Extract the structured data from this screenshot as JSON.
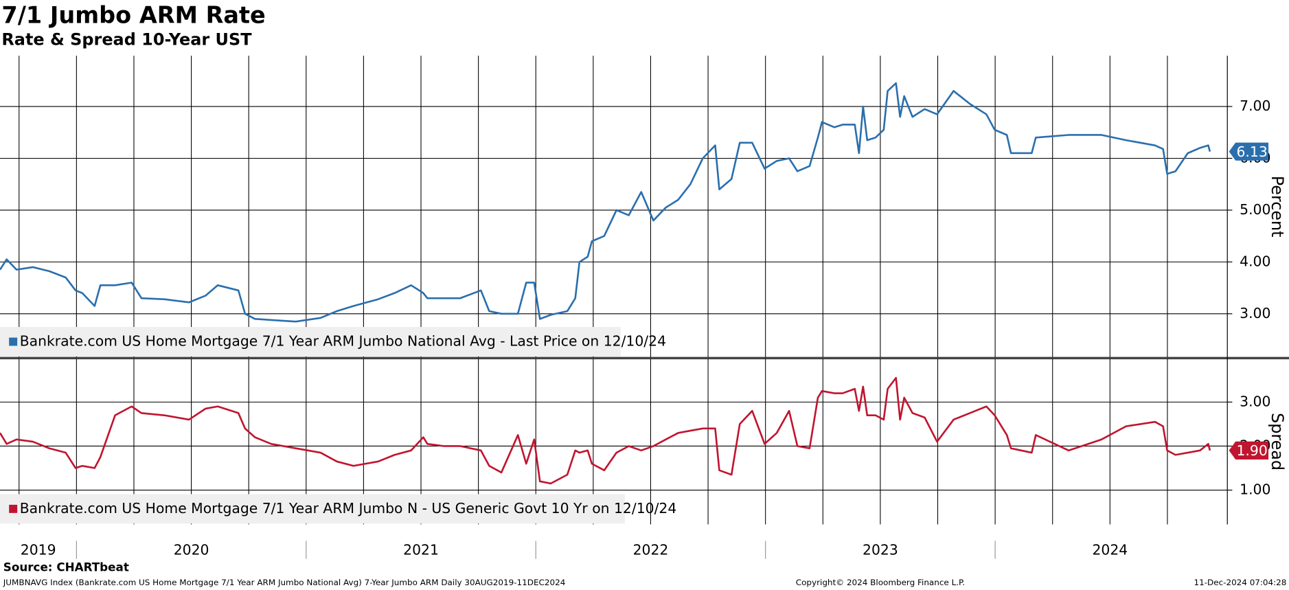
{
  "header": {
    "title": "7/1 Jumbo ARM Rate",
    "subtitle": "Rate & Spread 10-Year UST"
  },
  "footer": {
    "source": "Source: CHARTbeat",
    "description": "JUMBNAVG Index (Bankrate.com US Home Mortgage 7/1 Year ARM Jumbo National Avg) 7-Year Jumbo ARM  Daily 30AUG2019-11DEC2024",
    "copyright": "Copyright© 2024 Bloomberg Finance L.P.",
    "timestamp": "11-Dec-2024 07:04:28"
  },
  "chart_data": [
    {
      "type": "line",
      "y_label": "Percent",
      "x": [
        2019.667,
        2019.696,
        2019.739,
        2019.81,
        2019.882,
        2019.953,
        2019.996,
        2020.025,
        2020.079,
        2020.104,
        2020.168,
        2020.24,
        2020.283,
        2020.383,
        2020.49,
        2020.562,
        2020.615,
        2020.705,
        2020.734,
        2020.777,
        2020.848,
        2020.955,
        2021.063,
        2021.134,
        2021.206,
        2021.313,
        2021.385,
        2021.457,
        2021.51,
        2021.528,
        2021.6,
        2021.671,
        2021.761,
        2021.797,
        2021.85,
        2021.922,
        2021.958,
        2021.993,
        2022.018,
        2022.065,
        2022.137,
        2022.172,
        2022.19,
        2022.226,
        2022.244,
        2022.298,
        2022.351,
        2022.405,
        2022.459,
        2022.512,
        2022.566,
        2022.62,
        2022.673,
        2022.727,
        2022.781,
        2022.799,
        2022.852,
        2022.888,
        2022.942,
        2022.996,
        2023.049,
        2023.103,
        2023.139,
        2023.192,
        2023.228,
        2023.246,
        2023.3,
        2023.336,
        2023.389,
        2023.407,
        2023.425,
        2023.443,
        2023.479,
        2023.515,
        2023.532,
        2023.568,
        2023.586,
        2023.604,
        2023.64,
        2023.693,
        2023.747,
        2023.819,
        2023.89,
        2023.962,
        2023.998,
        2024.051,
        2024.069,
        2024.159,
        2024.177,
        2024.32,
        2024.463,
        2024.57,
        2024.696,
        2024.731,
        2024.749,
        2024.785,
        2024.839,
        2024.892,
        2024.928,
        2024.935
      ],
      "series": [
        {
          "name": "Bankrate.com US Home Mortgage 7/1 Year ARM Jumbo National Avg - Last Price on 12/10/24",
          "color": "#2a6fad",
          "values": [
            3.85,
            4.05,
            3.85,
            3.9,
            3.82,
            3.7,
            3.45,
            3.4,
            3.15,
            3.55,
            3.55,
            3.6,
            3.3,
            3.28,
            3.22,
            3.35,
            3.55,
            3.45,
            3.0,
            2.9,
            2.88,
            2.85,
            2.92,
            3.05,
            3.15,
            3.28,
            3.4,
            3.55,
            3.4,
            3.3,
            3.3,
            3.3,
            3.45,
            3.05,
            3.0,
            3.0,
            3.6,
            3.6,
            2.9,
            2.98,
            3.05,
            3.3,
            4.0,
            4.1,
            4.4,
            4.5,
            5.0,
            4.9,
            5.35,
            4.8,
            5.05,
            5.2,
            5.5,
            6.0,
            6.25,
            5.4,
            5.6,
            6.3,
            6.3,
            5.8,
            5.95,
            6.0,
            5.75,
            5.85,
            6.4,
            6.7,
            6.6,
            6.65,
            6.65,
            6.1,
            7.0,
            6.35,
            6.4,
            6.55,
            7.3,
            7.45,
            6.8,
            7.2,
            6.8,
            6.95,
            6.85,
            7.3,
            7.05,
            6.85,
            6.55,
            6.45,
            6.1,
            6.1,
            6.4,
            6.45,
            6.45,
            6.35,
            6.25,
            6.18,
            5.7,
            5.75,
            6.1,
            6.2,
            6.25,
            6.13
          ]
        }
      ],
      "last_label": {
        "value": 6.13,
        "label": "6.13"
      },
      "xlim": [
        2019.667,
        2025.011
      ],
      "xgrid": [
        2019.75,
        2020,
        2020.25,
        2020.5,
        2020.75,
        2021,
        2021.25,
        2021.5,
        2021.75,
        2022,
        2022.25,
        2022.5,
        2022.75,
        2023,
        2023.25,
        2023.5,
        2023.75,
        2024,
        2024.25,
        2024.5,
        2024.75
      ],
      "ylim": [
        2.16,
        7.98
      ],
      "yticks": [
        {
          "value": 3,
          "label": "3.00"
        },
        {
          "value": 4,
          "label": "4.00"
        },
        {
          "value": 5,
          "label": "5.00"
        },
        {
          "value": 6,
          "label": "6.00"
        },
        {
          "value": 7,
          "label": "7.00"
        }
      ],
      "grid": true
    },
    {
      "type": "line",
      "y_label": "Spread",
      "x": [
        2019.667,
        2019.696,
        2019.739,
        2019.81,
        2019.882,
        2019.953,
        2019.996,
        2020.025,
        2020.079,
        2020.104,
        2020.168,
        2020.24,
        2020.283,
        2020.383,
        2020.49,
        2020.562,
        2020.615,
        2020.705,
        2020.734,
        2020.777,
        2020.848,
        2020.955,
        2021.063,
        2021.134,
        2021.206,
        2021.313,
        2021.385,
        2021.457,
        2021.51,
        2021.528,
        2021.6,
        2021.671,
        2021.761,
        2021.797,
        2021.85,
        2021.922,
        2021.958,
        2021.993,
        2022.018,
        2022.065,
        2022.137,
        2022.172,
        2022.19,
        2022.226,
        2022.244,
        2022.298,
        2022.351,
        2022.405,
        2022.459,
        2022.512,
        2022.566,
        2022.62,
        2022.673,
        2022.727,
        2022.781,
        2022.799,
        2022.852,
        2022.888,
        2022.942,
        2022.996,
        2023.049,
        2023.103,
        2023.139,
        2023.192,
        2023.228,
        2023.246,
        2023.3,
        2023.336,
        2023.389,
        2023.407,
        2023.425,
        2023.443,
        2023.479,
        2023.515,
        2023.532,
        2023.568,
        2023.586,
        2023.604,
        2023.64,
        2023.693,
        2023.747,
        2023.819,
        2023.89,
        2023.962,
        2023.998,
        2024.051,
        2024.069,
        2024.159,
        2024.177,
        2024.32,
        2024.463,
        2024.57,
        2024.696,
        2024.731,
        2024.749,
        2024.785,
        2024.839,
        2024.892,
        2024.928,
        2024.935
      ],
      "series": [
        {
          "name": "Bankrate.com US Home Mortgage 7/1 Year ARM Jumbo N - US Generic Govt 10 Yr on 12/10/24",
          "color": "#c0152f",
          "values": [
            2.3,
            2.05,
            2.15,
            2.1,
            1.95,
            1.85,
            1.5,
            1.55,
            1.5,
            1.75,
            2.7,
            2.9,
            2.75,
            2.7,
            2.6,
            2.85,
            2.9,
            2.75,
            2.4,
            2.2,
            2.05,
            1.95,
            1.85,
            1.65,
            1.55,
            1.65,
            1.8,
            1.9,
            2.2,
            2.05,
            2.0,
            2.0,
            1.9,
            1.55,
            1.4,
            2.25,
            1.6,
            2.15,
            1.2,
            1.15,
            1.35,
            1.9,
            1.85,
            1.9,
            1.6,
            1.45,
            1.85,
            2.0,
            1.9,
            2.0,
            2.15,
            2.3,
            2.35,
            2.4,
            2.4,
            1.45,
            1.35,
            2.5,
            2.8,
            2.05,
            2.3,
            2.8,
            2.0,
            1.95,
            3.1,
            3.25,
            3.2,
            3.2,
            3.3,
            2.8,
            3.35,
            2.7,
            2.7,
            2.6,
            3.3,
            3.55,
            2.6,
            3.1,
            2.75,
            2.65,
            2.1,
            2.6,
            2.75,
            2.9,
            2.7,
            2.25,
            1.95,
            1.85,
            2.25,
            1.9,
            2.15,
            2.45,
            2.55,
            2.45,
            1.9,
            1.8,
            1.85,
            1.9,
            2.05,
            1.9
          ]
        }
      ],
      "last_label": {
        "value": 1.9,
        "label": "1.90"
      },
      "xlim": [
        2019.667,
        2025.011
      ],
      "xgrid": [
        2019.75,
        2020,
        2020.25,
        2020.5,
        2020.75,
        2021,
        2021.25,
        2021.5,
        2021.75,
        2022,
        2022.25,
        2022.5,
        2022.75,
        2023,
        2023.25,
        2023.5,
        2023.75,
        2024,
        2024.25,
        2024.5,
        2024.75
      ],
      "xticks": [
        {
          "value": 2019,
          "label": "2019"
        },
        {
          "value": 2020,
          "label": "2020"
        },
        {
          "value": 2021,
          "label": "2021"
        },
        {
          "value": 2022,
          "label": "2022"
        },
        {
          "value": 2023,
          "label": "2023"
        },
        {
          "value": 2024,
          "label": "2024"
        }
      ],
      "ylim": [
        0.22,
        3.98
      ],
      "yticks": [
        {
          "value": 1,
          "label": "1.00"
        },
        {
          "value": 2,
          "label": "2.00"
        },
        {
          "value": 3,
          "label": "3.00"
        }
      ],
      "grid": true
    }
  ]
}
